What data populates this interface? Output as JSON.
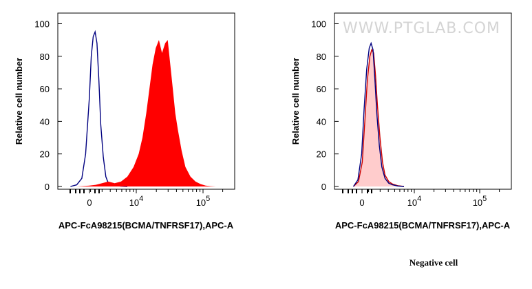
{
  "chart_data": [
    {
      "type": "area",
      "title": "",
      "xlabel": "APC-FcA98215(BCMA/TNFRSF17),APC-A",
      "ylabel": "Relative cell number",
      "y_ticks": [
        "0",
        "20",
        "40",
        "60",
        "80",
        "100"
      ],
      "ylim": [
        0,
        104
      ],
      "x_ticks": [
        {
          "base": "0",
          "exp": ""
        },
        {
          "base": "10",
          "exp": "4"
        },
        {
          "base": "10",
          "exp": "5"
        }
      ],
      "xlim": [
        -0.5,
        2.3
      ],
      "series": [
        {
          "name": "control",
          "style": "outline",
          "color": "#000080",
          "x": [
            -0.3,
            -0.2,
            -0.12,
            -0.06,
            0.0,
            0.03,
            0.06,
            0.09,
            0.12,
            0.15,
            0.18,
            0.22,
            0.26,
            0.3,
            0.35,
            0.42,
            0.5,
            0.6
          ],
          "y": [
            0,
            1,
            5,
            20,
            55,
            80,
            92,
            95,
            88,
            65,
            38,
            18,
            6,
            2,
            1,
            0.5,
            0.2,
            0
          ]
        },
        {
          "name": "sample",
          "style": "filled",
          "color": "#ff0000",
          "x": [
            -0.2,
            0.0,
            0.1,
            0.2,
            0.3,
            0.4,
            0.5,
            0.6,
            0.7,
            0.78,
            0.84,
            0.9,
            0.95,
            1.0,
            1.05,
            1.1,
            1.15,
            1.2,
            1.24,
            1.28,
            1.32,
            1.36,
            1.4,
            1.46,
            1.52,
            1.6,
            1.68,
            1.76,
            1.84,
            1.92,
            2.0
          ],
          "y": [
            0,
            0.5,
            1,
            2,
            3,
            2,
            3,
            6,
            12,
            20,
            30,
            45,
            60,
            75,
            85,
            90,
            82,
            88,
            90,
            75,
            60,
            45,
            35,
            22,
            12,
            6,
            3,
            1.5,
            0.5,
            0.2,
            0
          ]
        }
      ]
    },
    {
      "type": "area",
      "title": "",
      "xlabel": "APC-FcA98215(BCMA/TNFRSF17),APC-A",
      "ylabel": "Relative cell number",
      "y_ticks": [
        "0",
        "20",
        "40",
        "60",
        "80",
        "100"
      ],
      "ylim": [
        0,
        104
      ],
      "x_ticks": [
        {
          "base": "0",
          "exp": ""
        },
        {
          "base": "10",
          "exp": "4"
        },
        {
          "base": "10",
          "exp": "5"
        }
      ],
      "xlim": [
        -0.5,
        2.3
      ],
      "watermark": "WWW.PTGLAB.COM",
      "caption": "Negative cell",
      "series": [
        {
          "name": "sample",
          "style": "filled",
          "color": "#ffcccc",
          "x": [
            -0.2,
            -0.12,
            -0.06,
            -0.02,
            0.02,
            0.06,
            0.09,
            0.12,
            0.15,
            0.18,
            0.22,
            0.26,
            0.3,
            0.36,
            0.42,
            0.5,
            0.6
          ],
          "y": [
            0,
            3,
            15,
            40,
            65,
            80,
            84,
            82,
            68,
            50,
            30,
            15,
            7,
            3,
            1.5,
            0.5,
            0
          ]
        },
        {
          "name": "sample-outline",
          "style": "outline",
          "color": "#cc0000",
          "x": [
            -0.2,
            -0.12,
            -0.06,
            -0.02,
            0.02,
            0.06,
            0.09,
            0.12,
            0.15,
            0.18,
            0.22,
            0.26,
            0.3,
            0.36,
            0.42,
            0.5,
            0.6
          ],
          "y": [
            0,
            3,
            15,
            40,
            65,
            80,
            84,
            82,
            68,
            50,
            30,
            15,
            7,
            3,
            1.5,
            0.5,
            0
          ]
        },
        {
          "name": "control",
          "style": "outline",
          "color": "#000080",
          "x": [
            -0.2,
            -0.13,
            -0.07,
            -0.03,
            0.01,
            0.05,
            0.08,
            0.11,
            0.14,
            0.17,
            0.21,
            0.25,
            0.3,
            0.36,
            0.42,
            0.5,
            0.6
          ],
          "y": [
            0,
            4,
            20,
            48,
            72,
            85,
            88,
            84,
            66,
            45,
            25,
            12,
            5,
            2,
            1,
            0.3,
            0
          ]
        }
      ]
    }
  ]
}
